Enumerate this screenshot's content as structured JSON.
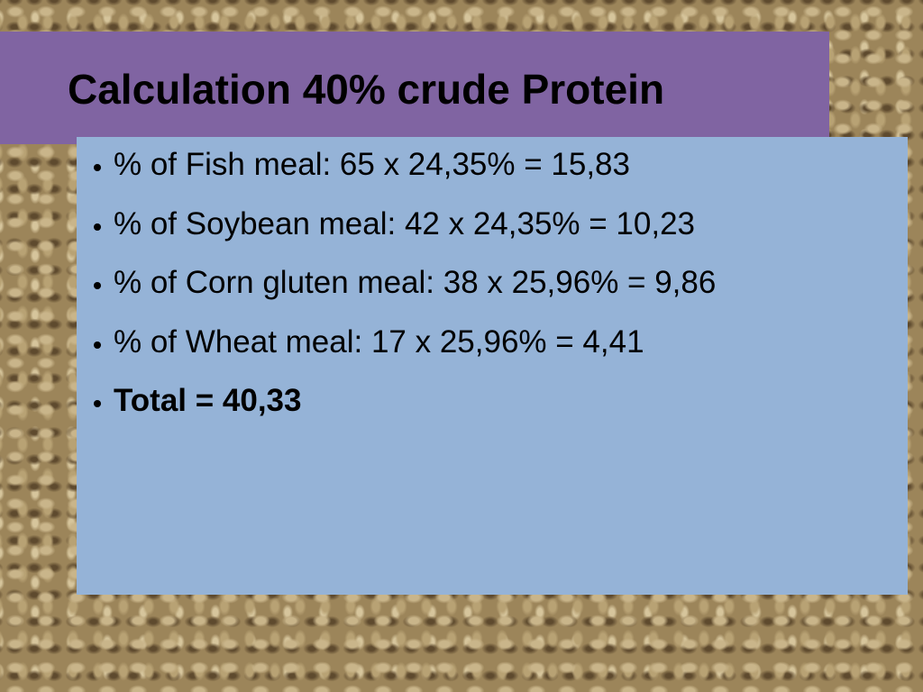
{
  "title": "Calculation 40% crude Protein",
  "bullets": [
    {
      "text": "% of Fish meal: 65 x 24,35% = 15,83",
      "bold": false
    },
    {
      "text": "% of Soybean meal: 42 x 24,35% = 10,23",
      "bold": false
    },
    {
      "text": "% of Corn gluten meal: 38 x 25,96% = 9,86",
      "bold": false
    },
    {
      "text": "% of Wheat meal: 17 x 25,96% = 4,41",
      "bold": false
    },
    {
      "text": "Total = 40,33",
      "bold": true
    }
  ]
}
